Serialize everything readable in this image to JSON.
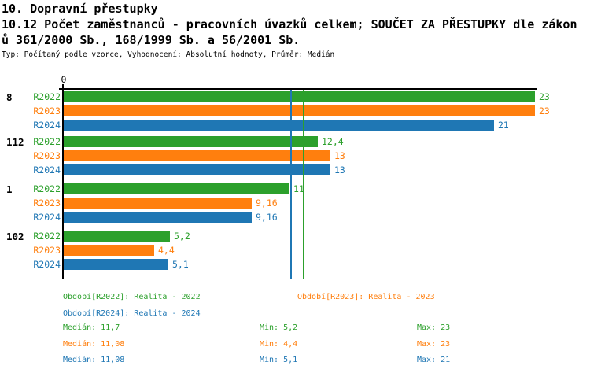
{
  "chart_data": {
    "type": "bar",
    "orientation": "horizontal",
    "title": "10. Dopravní přestupky",
    "subtitle_line1": "10.12 Počet zaměstnanců - pracovních úvazků celkem; SOUČET ZA PŘESTUPKY dle zákon",
    "subtitle_line2": "ů 361/2000 Sb., 168/1999 Sb. a 56/2001 Sb.",
    "meta": "Typ: Počítaný podle vzorce, Vyhodnocení: Absolutní hodnoty, Průměr: Medián",
    "origin_tick_label": "0",
    "xlim": [
      0,
      23.1
    ],
    "grid": false,
    "legend_position": "bottom",
    "series": [
      {
        "id": "R2022",
        "label": "R2022",
        "color": "#2ca02c",
        "legend": "Období[R2022]: Realita - 2022",
        "median": 11.7,
        "min": 5.2,
        "max": 23,
        "median_label": "Medián: 11,7",
        "min_label": "Min: 5,2",
        "max_label": "Max: 23"
      },
      {
        "id": "R2023",
        "label": "R2023",
        "color": "#ff7f0e",
        "legend": "Období[R2023]: Realita - 2023",
        "median": 11.08,
        "min": 4.4,
        "max": 23,
        "median_label": "Medián: 11,08",
        "min_label": "Min: 4,4",
        "max_label": "Max: 23"
      },
      {
        "id": "R2024",
        "label": "R2024",
        "color": "#1f77b4",
        "legend": "Období[R2024]: Realita - 2024",
        "median": 11.08,
        "min": 5.1,
        "max": 21,
        "median_label": "Medián: 11,08",
        "min_label": "Min: 5,1",
        "max_label": "Max: 21"
      }
    ],
    "groups": [
      {
        "label": "8",
        "values": [
          23,
          23,
          21
        ],
        "value_labels": [
          "23",
          "23",
          "21"
        ]
      },
      {
        "label": "112",
        "values": [
          12.4,
          13,
          13
        ],
        "value_labels": [
          "12,4",
          "13",
          "13"
        ]
      },
      {
        "label": "1",
        "values": [
          11,
          9.16,
          9.16
        ],
        "value_labels": [
          "11",
          "9,16",
          "9,16"
        ]
      },
      {
        "label": "102",
        "values": [
          5.2,
          4.4,
          5.1
        ],
        "value_labels": [
          "5,2",
          "4,4",
          "5,1"
        ]
      }
    ]
  }
}
